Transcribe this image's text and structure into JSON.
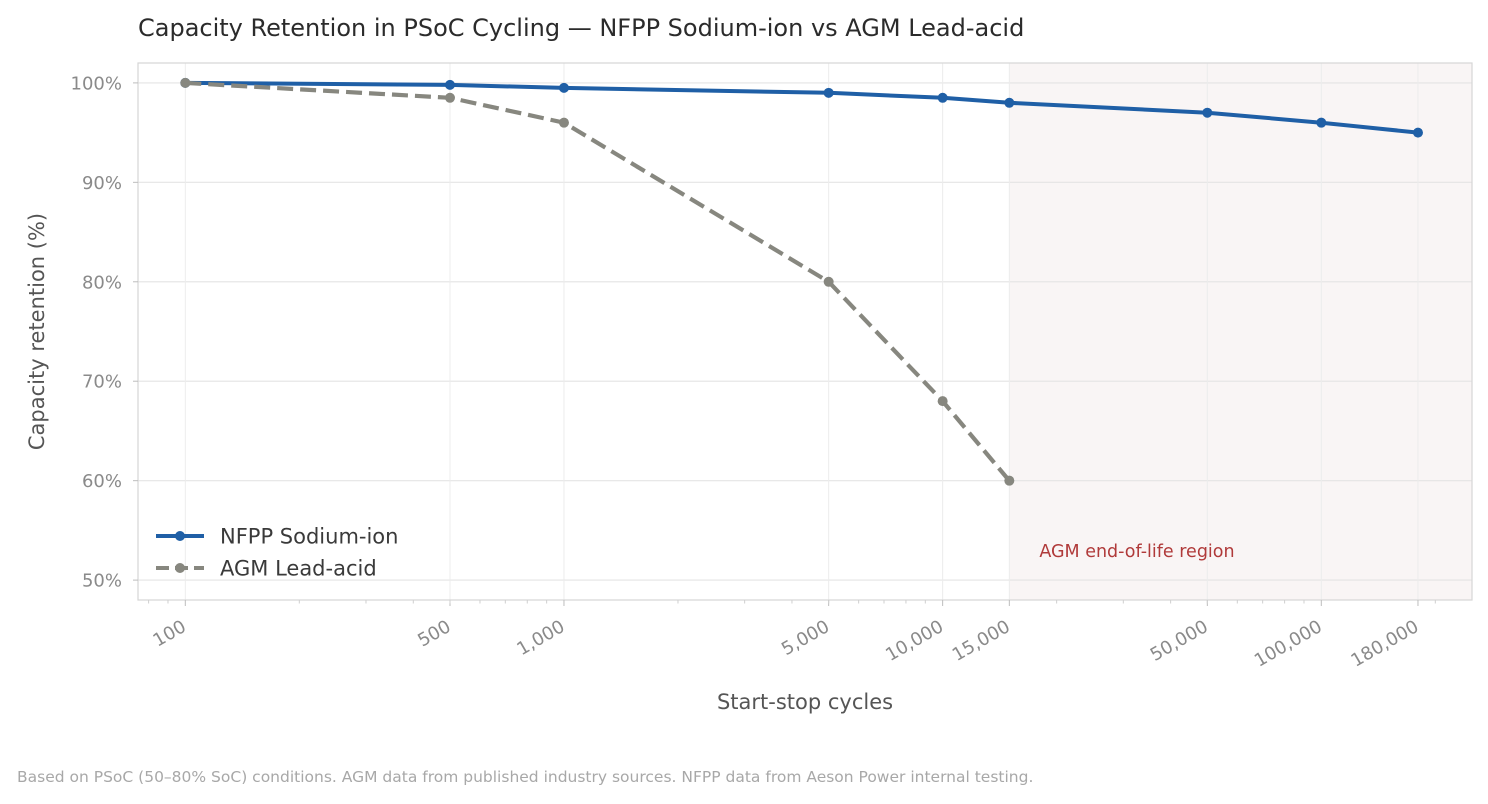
{
  "chart_data": {
    "type": "line",
    "title": "Capacity Retention in PSoC Cycling — NFPP Sodium-ion vs AGM Lead-acid",
    "xlabel": "Start-stop cycles",
    "ylabel": "Capacity retention (%)",
    "x_scale": "log",
    "xlim": [
      75,
      250000
    ],
    "ylim": [
      48,
      102
    ],
    "x_ticks": [
      100,
      500,
      1000,
      5000,
      10000,
      15000,
      50000,
      100000,
      180000
    ],
    "x_tick_labels": [
      "100",
      "500",
      "1,000",
      "5,000",
      "10,000",
      "15,000",
      "50,000",
      "100,000",
      "180,000"
    ],
    "y_ticks": [
      50,
      60,
      70,
      80,
      90,
      100
    ],
    "y_tick_labels": [
      "50%",
      "60%",
      "70%",
      "80%",
      "90%",
      "100%"
    ],
    "grid": true,
    "legend_position": "lower-left",
    "series": [
      {
        "name": "NFPP Sodium-ion",
        "color": "#1f5fa6",
        "line_style": "solid",
        "x": [
          100,
          500,
          1000,
          5000,
          10000,
          15000,
          50000,
          100000,
          180000
        ],
        "y": [
          100,
          99.8,
          99.5,
          99.0,
          98.5,
          98.0,
          97.0,
          96.0,
          95.0
        ]
      },
      {
        "name": "AGM Lead-acid",
        "color": "#87877f",
        "line_style": "dashed",
        "x": [
          100,
          500,
          1000,
          5000,
          10000,
          15000
        ],
        "y": [
          100,
          98.5,
          96.0,
          80.0,
          68.0,
          60.0
        ]
      }
    ],
    "shaded_region": {
      "x_start": 15000,
      "x_end": 250000,
      "color": "#f9f5f5",
      "label": "AGM end-of-life region",
      "label_color": "#b03a3a"
    },
    "footnote": "Based on PSoC (50–80% SoC) conditions. AGM data from published industry sources. NFPP data from Aeson Power internal testing."
  }
}
